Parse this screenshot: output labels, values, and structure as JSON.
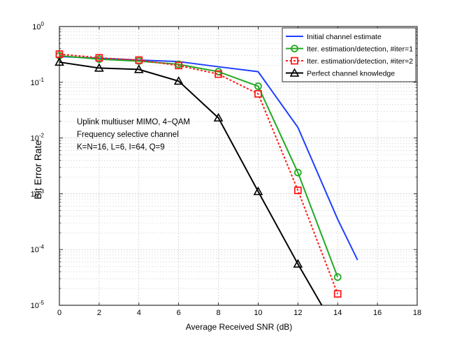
{
  "chart_data": {
    "type": "line",
    "title": "",
    "xlabel": "Average Received SNR (dB)",
    "ylabel": "Bit Error Rate",
    "x_ticks": [
      0,
      2,
      4,
      6,
      8,
      10,
      12,
      14,
      16,
      18
    ],
    "x_tick_labels": [
      "0",
      "2",
      "4",
      "6",
      "8",
      "10",
      "12",
      "14",
      "16",
      "18"
    ],
    "y_ticks": [
      {
        "value": 1e-05,
        "base": "10",
        "exp": "-5"
      },
      {
        "value": 0.0001,
        "base": "10",
        "exp": "-4"
      },
      {
        "value": 0.001,
        "base": "10",
        "exp": "-3"
      },
      {
        "value": 0.01,
        "base": "10",
        "exp": "-2"
      },
      {
        "value": 0.1,
        "base": "10",
        "exp": "-1"
      },
      {
        "value": 1,
        "base": "10",
        "exp": "0"
      }
    ],
    "xlim": [
      0,
      18
    ],
    "ylim": [
      1e-05,
      1
    ],
    "yscale": "log",
    "grid": true,
    "legend_position": "top-right",
    "annotation": [
      "Uplink multiuser MIMO, 4−QAM",
      "Frequency selective channel",
      "K=N=16, L=6, I=64, Q=9"
    ],
    "series": [
      {
        "name": "Initial channel estimate",
        "color": "#1f3fff",
        "line": "solid",
        "marker": "none",
        "x": [
          0,
          2,
          4,
          6,
          8,
          10,
          12,
          14,
          15
        ],
        "y": [
          0.29,
          0.27,
          0.25,
          0.235,
          0.19,
          0.155,
          0.0155,
          0.00035,
          6.5e-05
        ]
      },
      {
        "name": "Iter. estimation/detection, #iter=1",
        "color": "#22aa22",
        "line": "solid",
        "marker": "circle",
        "x": [
          0,
          2,
          4,
          6,
          8,
          10,
          12,
          14
        ],
        "y": [
          0.3,
          0.26,
          0.24,
          0.21,
          0.155,
          0.085,
          0.0024,
          3.2e-05
        ]
      },
      {
        "name": "Iter. estimation/detection, #iter=2",
        "color": "#ff1a1a",
        "line": "dotted",
        "marker": "square",
        "x": [
          0,
          2,
          4,
          6,
          8,
          10,
          12,
          14
        ],
        "y": [
          0.32,
          0.275,
          0.25,
          0.2,
          0.14,
          0.062,
          0.00115,
          1.6e-05
        ]
      },
      {
        "name": "Perfect channel knowledge",
        "color": "#000000",
        "line": "solid",
        "marker": "triangle",
        "x": [
          0,
          2,
          4,
          6,
          8,
          10,
          12,
          13.2
        ],
        "y": [
          0.23,
          0.18,
          0.17,
          0.105,
          0.023,
          0.0011,
          5.5e-05,
          1e-05
        ],
        "marker_count": 7
      }
    ]
  }
}
